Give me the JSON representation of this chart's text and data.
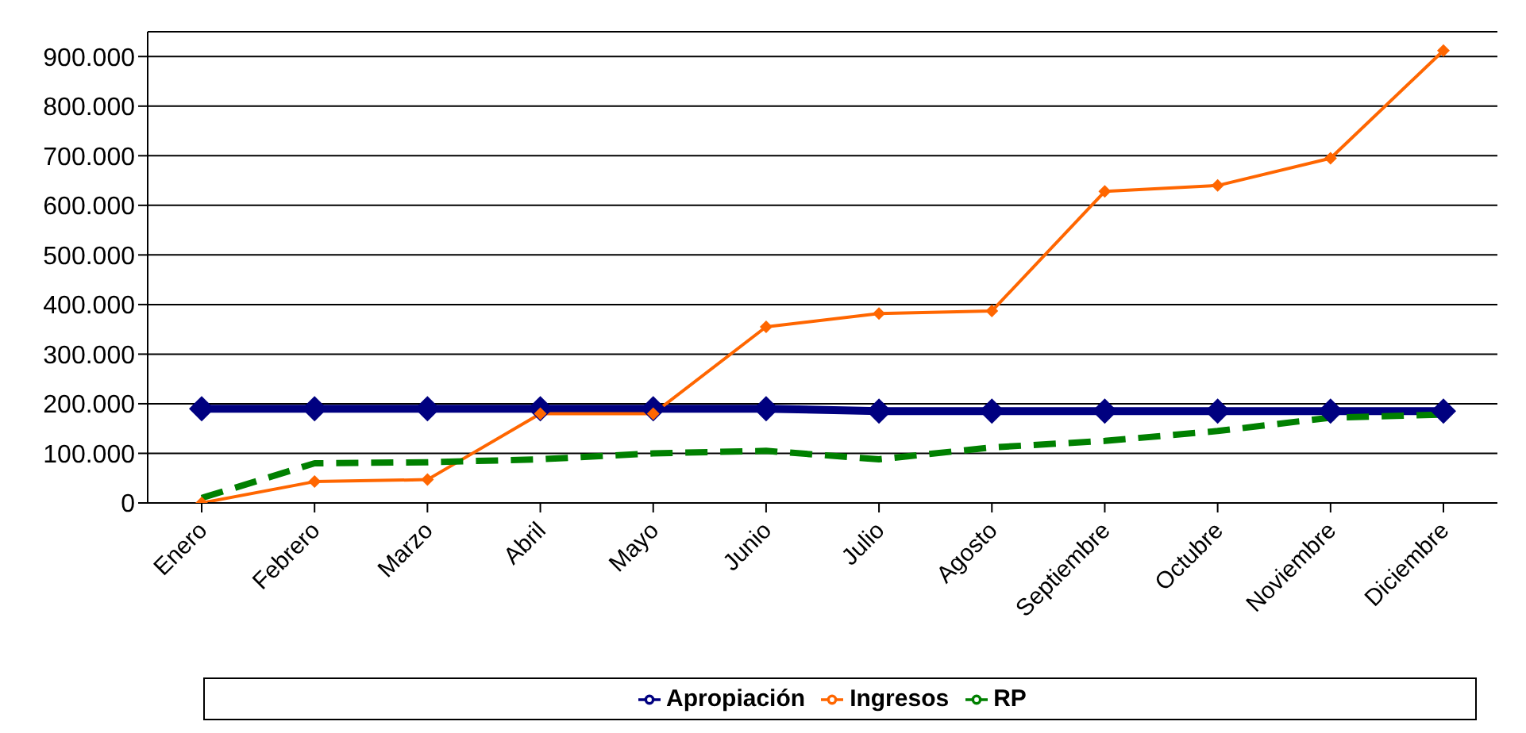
{
  "chart_data": {
    "type": "line",
    "categories": [
      "Enero",
      "Febrero",
      "Marzo",
      "Abril",
      "Mayo",
      "Junio",
      "Julio",
      "Agosto",
      "Septiembre",
      "Octubre",
      "Noviembre",
      "Diciembre"
    ],
    "series": [
      {
        "name": "Apropiación",
        "color": "#000080",
        "marker": "diamond",
        "line_style": "solid",
        "values": [
          190000,
          190000,
          190000,
          190000,
          190000,
          190000,
          185000,
          185000,
          185000,
          185000,
          185000,
          185000
        ]
      },
      {
        "name": "Ingresos",
        "color": "#ff6600",
        "marker": "diamond",
        "line_style": "solid",
        "values": [
          0,
          43000,
          47000,
          180000,
          180000,
          355000,
          382000,
          387000,
          628000,
          640000,
          695000,
          912000
        ]
      },
      {
        "name": "RP",
        "color": "#008000",
        "marker": "none",
        "line_style": "dashed",
        "values": [
          10000,
          80000,
          82000,
          88000,
          100000,
          105000,
          88000,
          112000,
          125000,
          145000,
          172000,
          178000
        ]
      }
    ],
    "ylim": [
      0,
      950000
    ],
    "yticks": [
      {
        "value": 0,
        "label": "0"
      },
      {
        "value": 100000,
        "label": "100.000"
      },
      {
        "value": 200000,
        "label": "200.000"
      },
      {
        "value": 300000,
        "label": "300.000"
      },
      {
        "value": 400000,
        "label": "400.000"
      },
      {
        "value": 500000,
        "label": "500.000"
      },
      {
        "value": 600000,
        "label": "600.000"
      },
      {
        "value": 700000,
        "label": "700.000"
      },
      {
        "value": 800000,
        "label": "800.000"
      },
      {
        "value": 900000,
        "label": "900.000"
      }
    ],
    "grid": "y",
    "legend": "bottom"
  }
}
